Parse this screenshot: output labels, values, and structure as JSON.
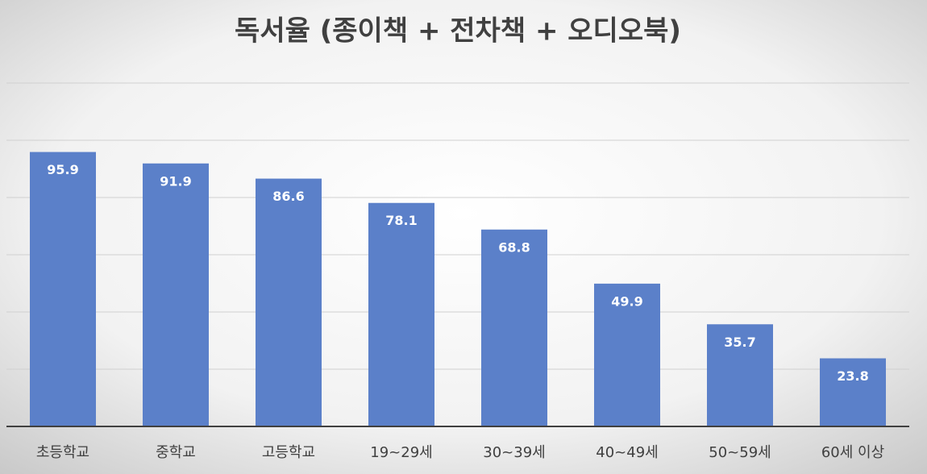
{
  "chart_data": {
    "type": "bar",
    "title": "독서율 (종이책 + 전차책 + 오디오북)",
    "categories": [
      "초등학교",
      "중학교",
      "고등학교",
      "19~29세",
      "30~39세",
      "40~49세",
      "50~59세",
      "60세 이상"
    ],
    "values": [
      95.9,
      91.9,
      86.6,
      78.1,
      68.8,
      49.9,
      35.7,
      23.8
    ],
    "color": "#5b80c9",
    "ylim": [
      0,
      120
    ],
    "yticks": [
      0,
      20,
      40,
      60,
      80,
      100,
      120
    ],
    "grid": true
  }
}
